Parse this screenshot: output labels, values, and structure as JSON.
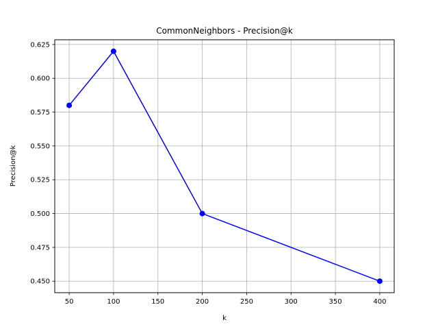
{
  "chart_data": {
    "type": "line",
    "title": "CommonNeighbors - Precision@k",
    "xlabel": "k",
    "ylabel": "Precision@k",
    "xlim": [
      33.75,
      416.25
    ],
    "ylim": [
      0.4415,
      0.6285
    ],
    "xticks": [
      50,
      100,
      150,
      200,
      250,
      300,
      350,
      400
    ],
    "yticks": [
      0.45,
      0.475,
      0.5,
      0.525,
      0.55,
      0.575,
      0.6,
      0.625
    ],
    "xtick_labels": [
      "50",
      "100",
      "150",
      "200",
      "250",
      "300",
      "350",
      "400"
    ],
    "ytick_labels": [
      "0.450",
      "0.475",
      "0.500",
      "0.525",
      "0.550",
      "0.575",
      "0.600",
      "0.625"
    ],
    "grid": true,
    "series": [
      {
        "color": "#0000ff",
        "marker": "circle",
        "x": [
          50,
          100,
          200,
          400
        ],
        "y": [
          0.58,
          0.62,
          0.5,
          0.45
        ]
      }
    ]
  }
}
